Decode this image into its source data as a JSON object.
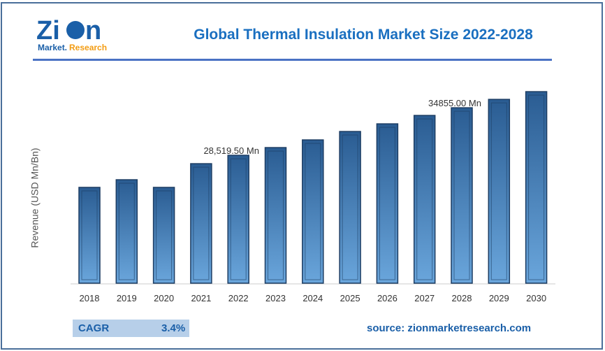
{
  "header": {
    "title": "Global Thermal Insulation Market Size 2022-2028",
    "logo_text": "Zion Market.Research"
  },
  "chart_data": {
    "type": "bar",
    "title": "Global Thermal Insulation Market Size 2022-2028",
    "ylabel": "Revenue (USD Mn/Bn)",
    "xlabel": "",
    "categories": [
      "2018",
      "2019",
      "2020",
      "2021",
      "2022",
      "2023",
      "2024",
      "2025",
      "2026",
      "2027",
      "2028",
      "2029",
      "2030"
    ],
    "values": [
      24240,
      25260,
      24240,
      27400,
      28519.5,
      29545,
      30570,
      31690,
      32710,
      33830,
      34855,
      35970,
      37000
    ],
    "ylim": [
      11470,
      38000
    ],
    "annotations": [
      {
        "category": "2022",
        "text": "28,519.50 Mn"
      },
      {
        "category": "2028",
        "text": "34855.00 Mn"
      }
    ],
    "grid": false,
    "bar_color": "#2e6aa8"
  },
  "footer": {
    "cagr_label": "CAGR",
    "cagr_value": "3.4%",
    "source": "source: zionmarketresearch.com"
  }
}
